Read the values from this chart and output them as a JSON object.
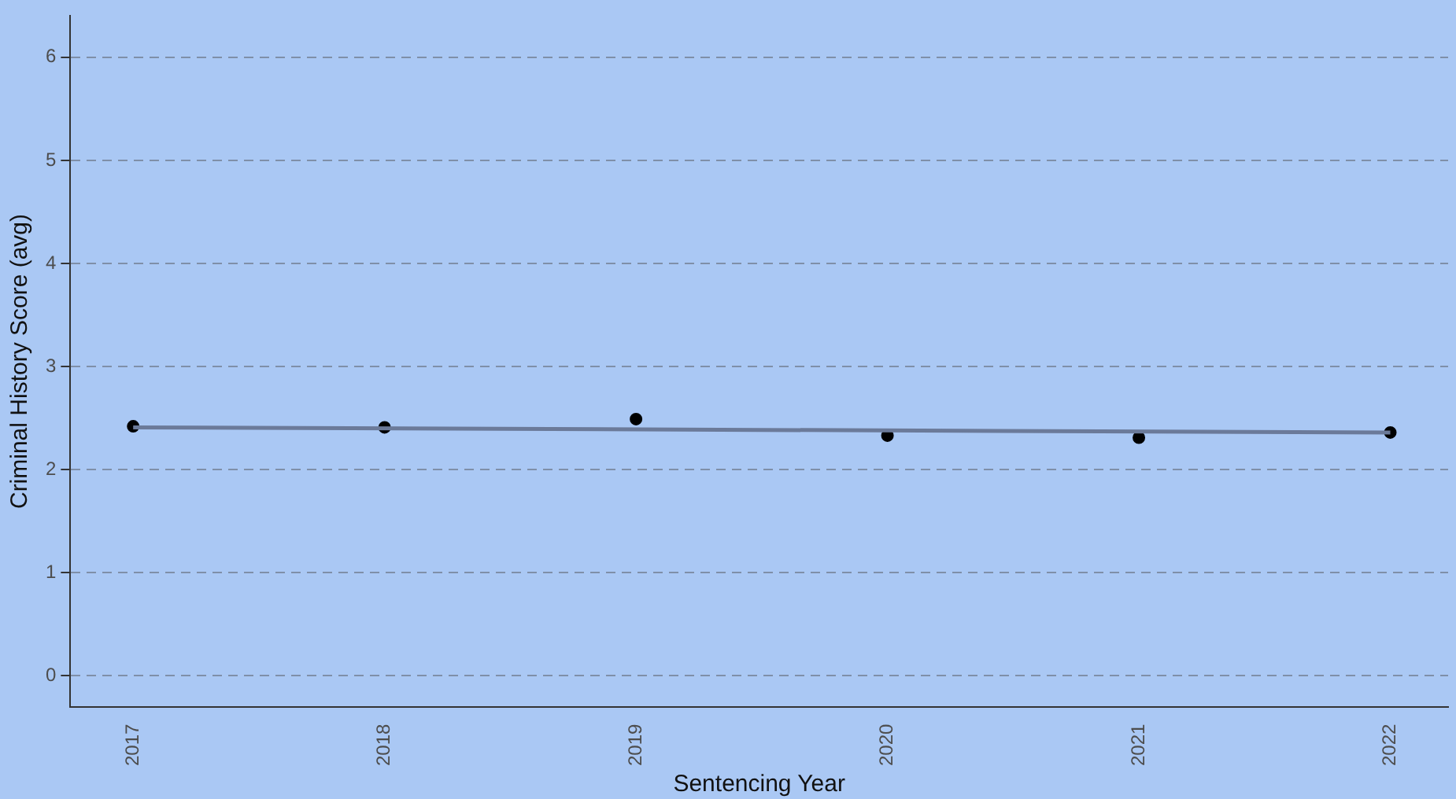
{
  "chart_data": {
    "type": "scatter",
    "xlabel": "Sentencing Year",
    "ylabel": "Criminal History Score (avg)",
    "series": [
      {
        "color": "#000000",
        "x": [
          2017,
          2018,
          2019,
          2020,
          2021,
          2022
        ],
        "values": [
          2.42,
          2.41,
          2.49,
          2.33,
          2.31,
          2.36
        ]
      },
      {
        "type": "line",
        "marker": "none",
        "color": "#6b7a99",
        "x": [
          2017,
          2022
        ],
        "values": [
          2.41,
          2.36
        ]
      }
    ],
    "xlim": [
      2016.75,
      2022.23
    ],
    "xticks": [
      2017,
      2018,
      2019,
      2020,
      2021,
      2022
    ],
    "ylim": [
      -0.3,
      6.4
    ],
    "yticks": [
      0,
      1,
      2,
      3,
      4,
      5,
      6
    ],
    "grid": "y",
    "legend": false,
    "marker": "circle",
    "line_style": "solid"
  }
}
